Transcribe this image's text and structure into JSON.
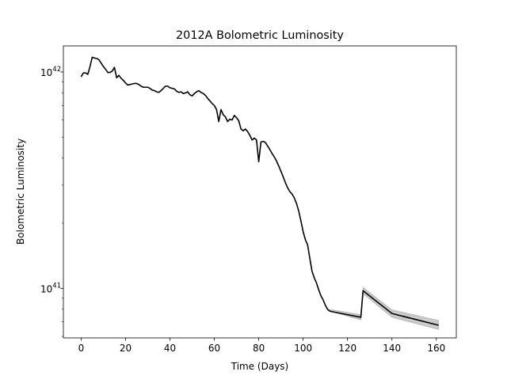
{
  "colors": {
    "line": "#000000",
    "band": "#a0a0a0",
    "background": "#ffffff"
  },
  "chart_data": {
    "type": "line",
    "title": "2012A Bolometric Luminosity",
    "xlabel": "Time (Days)",
    "ylabel": "Bolometric Luminosity",
    "xscale": "linear",
    "yscale": "log",
    "xlim": [
      -8,
      169
    ],
    "ylim": [
      5.9e+40,
      1.32e+42
    ],
    "grid": false,
    "legend": "none",
    "xticks": [
      0,
      20,
      40,
      60,
      80,
      100,
      120,
      140,
      160
    ],
    "xtick_labels": [
      "0",
      "20",
      "40",
      "60",
      "80",
      "100",
      "120",
      "140",
      "160"
    ],
    "yticks": [
      1e+41,
      1e+42
    ],
    "ytick_labels": [
      {
        "base": "10",
        "exp": "41"
      },
      {
        "base": "10",
        "exp": "42"
      }
    ],
    "series": [
      {
        "x": [
          0,
          1,
          2,
          3,
          4,
          5,
          6,
          7,
          8,
          9,
          10,
          11,
          12,
          13,
          14,
          15,
          16,
          17,
          18,
          19,
          20,
          21,
          22,
          23,
          24,
          25,
          26,
          27,
          28,
          29,
          30,
          31,
          32,
          33,
          34,
          35,
          36,
          37,
          38,
          39,
          40,
          41,
          42,
          43,
          44,
          45,
          46,
          47,
          48,
          49,
          50,
          51,
          52,
          53,
          54,
          55,
          56,
          57,
          58,
          59,
          60,
          61,
          62,
          63,
          64,
          65,
          66,
          67,
          68,
          69,
          70,
          71,
          72,
          73,
          74,
          75,
          76,
          77,
          78,
          79,
          80,
          81,
          82,
          83,
          84,
          85,
          86,
          87,
          88,
          89,
          90,
          91,
          92,
          93,
          94,
          95,
          96,
          97,
          98,
          99,
          100,
          101,
          102,
          103,
          104,
          105,
          106,
          107,
          108,
          109,
          110,
          111,
          112,
          113,
          126,
          127,
          140,
          161
        ],
        "y": [
          9.5e+41,
          9.9e+41,
          9.9e+41,
          9.75e+41,
          1.06e+42,
          1.17e+42,
          1.16e+42,
          1.155e+42,
          1.14e+42,
          1.1e+42,
          1.06e+42,
          1.03e+42,
          9.95e+41,
          9.95e+41,
          1.01e+42,
          1.05e+42,
          9.4e+41,
          9.65e+41,
          9.35e+41,
          9.15e+41,
          8.9e+41,
          8.7e+41,
          8.75e+41,
          8.8e+41,
          8.85e+41,
          8.85e+41,
          8.75e+41,
          8.6e+41,
          8.5e+41,
          8.5e+41,
          8.5e+41,
          8.4e+41,
          8.25e+41,
          8.2e+41,
          8.1e+41,
          8.05e+41,
          8.2e+41,
          8.4e+41,
          8.6e+41,
          8.6e+41,
          8.45e+41,
          8.4e+41,
          8.35e+41,
          8.15e+41,
          8.05e+41,
          8.1e+41,
          7.95e+41,
          8e+41,
          8.1e+41,
          7.85e+41,
          7.75e+41,
          7.95e+41,
          8.1e+41,
          8.2e+41,
          8.05e+41,
          7.95e+41,
          7.8e+41,
          7.55e+41,
          7.35e+41,
          7.15e+41,
          7e+41,
          6.7e+41,
          5.9e+41,
          6.7e+41,
          6.35e+41,
          6.2e+41,
          5.9e+41,
          6.05e+41,
          6e+41,
          6.3e+41,
          6.15e+41,
          5.95e+41,
          5.45e+41,
          5.35e+41,
          5.45e+41,
          5.3e+41,
          5.1e+41,
          4.85e+41,
          4.95e+41,
          4.85e+41,
          3.85e+41,
          4.75e+41,
          4.78e+41,
          4.72e+41,
          4.55e+41,
          4.38e+41,
          4.2e+41,
          4.05e+41,
          3.88e+41,
          3.68e+41,
          3.48e+41,
          3.28e+41,
          3.08e+41,
          2.92e+41,
          2.8e+41,
          2.73e+41,
          2.62e+41,
          2.47e+41,
          2.28e+41,
          2.05e+41,
          1.83e+41,
          1.68e+41,
          1.59e+41,
          1.38e+41,
          1.2e+41,
          1.12e+41,
          1.06e+41,
          9.85e+40,
          9.25e+40,
          8.85e+40,
          8.35e+40,
          8e+40,
          7.85e+40,
          7.8e+40,
          7.35e+40,
          9.75e+40,
          7.65e+40,
          6.75e+40
        ],
        "y_lower": [
          9.5e+41,
          9.9e+41,
          9.9e+41,
          9.75e+41,
          1.06e+42,
          1.17e+42,
          1.16e+42,
          1.155e+42,
          1.14e+42,
          1.1e+42,
          1.06e+42,
          1.03e+42,
          9.95e+41,
          9.95e+41,
          1.01e+42,
          1.05e+42,
          9.4e+41,
          9.65e+41,
          9.35e+41,
          9.15e+41,
          8.9e+41,
          8.7e+41,
          8.75e+41,
          8.8e+41,
          8.85e+41,
          8.85e+41,
          8.75e+41,
          8.6e+41,
          8.5e+41,
          8.5e+41,
          8.5e+41,
          8.4e+41,
          8.25e+41,
          8.2e+41,
          8.1e+41,
          8.05e+41,
          8.2e+41,
          8.4e+41,
          8.6e+41,
          8.6e+41,
          8.45e+41,
          8.4e+41,
          8.35e+41,
          8.15e+41,
          8.05e+41,
          8.1e+41,
          7.95e+41,
          8e+41,
          8.1e+41,
          7.85e+41,
          7.75e+41,
          7.95e+41,
          8.1e+41,
          8.2e+41,
          8.05e+41,
          7.95e+41,
          7.8e+41,
          7.55e+41,
          7.35e+41,
          7.15e+41,
          7e+41,
          6.7e+41,
          5.9e+41,
          6.7e+41,
          6.35e+41,
          6.2e+41,
          5.9e+41,
          6.05e+41,
          6e+41,
          6.3e+41,
          6.15e+41,
          5.95e+41,
          5.45e+41,
          5.35e+41,
          5.45e+41,
          5.3e+41,
          5.1e+41,
          4.85e+41,
          4.95e+41,
          4.85e+41,
          3.85e+41,
          4.75e+41,
          4.78e+41,
          4.72e+41,
          4.55e+41,
          4.38e+41,
          4.2e+41,
          4.05e+41,
          3.88e+41,
          3.68e+41,
          3.48e+41,
          3.28e+41,
          3.08e+41,
          2.92e+41,
          2.8e+41,
          2.73e+41,
          2.62e+41,
          2.47e+41,
          2.28e+41,
          2.05e+41,
          1.83e+41,
          1.68e+41,
          1.59e+41,
          1.38e+41,
          1.2e+41,
          1.12e+41,
          1.06e+41,
          9.85e+40,
          9.25e+40,
          8.85e+40,
          8.35e+40,
          8e+40,
          7.85e+40,
          7.8e+40,
          7.15e+40,
          9.45e+40,
          7.35e+40,
          6.45e+40
        ],
        "y_upper": [
          9.5e+41,
          9.9e+41,
          9.9e+41,
          9.75e+41,
          1.06e+42,
          1.17e+42,
          1.16e+42,
          1.155e+42,
          1.14e+42,
          1.1e+42,
          1.06e+42,
          1.03e+42,
          9.95e+41,
          9.95e+41,
          1.01e+42,
          1.05e+42,
          9.4e+41,
          9.65e+41,
          9.35e+41,
          9.15e+41,
          8.9e+41,
          8.7e+41,
          8.75e+41,
          8.8e+41,
          8.85e+41,
          8.85e+41,
          8.75e+41,
          8.6e+41,
          8.5e+41,
          8.5e+41,
          8.5e+41,
          8.4e+41,
          8.25e+41,
          8.2e+41,
          8.1e+41,
          8.05e+41,
          8.2e+41,
          8.4e+41,
          8.6e+41,
          8.6e+41,
          8.45e+41,
          8.4e+41,
          8.35e+41,
          8.15e+41,
          8.05e+41,
          8.1e+41,
          7.95e+41,
          8e+41,
          8.1e+41,
          7.85e+41,
          7.75e+41,
          7.95e+41,
          8.1e+41,
          8.2e+41,
          8.05e+41,
          7.95e+41,
          7.8e+41,
          7.55e+41,
          7.35e+41,
          7.15e+41,
          7e+41,
          6.7e+41,
          5.9e+41,
          6.7e+41,
          6.35e+41,
          6.2e+41,
          5.9e+41,
          6.05e+41,
          6e+41,
          6.3e+41,
          6.15e+41,
          5.95e+41,
          5.45e+41,
          5.35e+41,
          5.45e+41,
          5.3e+41,
          5.1e+41,
          4.85e+41,
          4.95e+41,
          4.85e+41,
          3.85e+41,
          4.75e+41,
          4.78e+41,
          4.72e+41,
          4.55e+41,
          4.38e+41,
          4.2e+41,
          4.05e+41,
          3.88e+41,
          3.68e+41,
          3.48e+41,
          3.28e+41,
          3.08e+41,
          2.92e+41,
          2.8e+41,
          2.73e+41,
          2.62e+41,
          2.47e+41,
          2.28e+41,
          2.05e+41,
          1.83e+41,
          1.68e+41,
          1.59e+41,
          1.38e+41,
          1.2e+41,
          1.12e+41,
          1.06e+41,
          9.85e+40,
          9.25e+40,
          8.85e+40,
          8.35e+40,
          8e+40,
          7.95e+40,
          7.95e+40,
          7.55e+40,
          1.01e+41,
          7.95e+40,
          7.1e+40
        ]
      }
    ]
  }
}
